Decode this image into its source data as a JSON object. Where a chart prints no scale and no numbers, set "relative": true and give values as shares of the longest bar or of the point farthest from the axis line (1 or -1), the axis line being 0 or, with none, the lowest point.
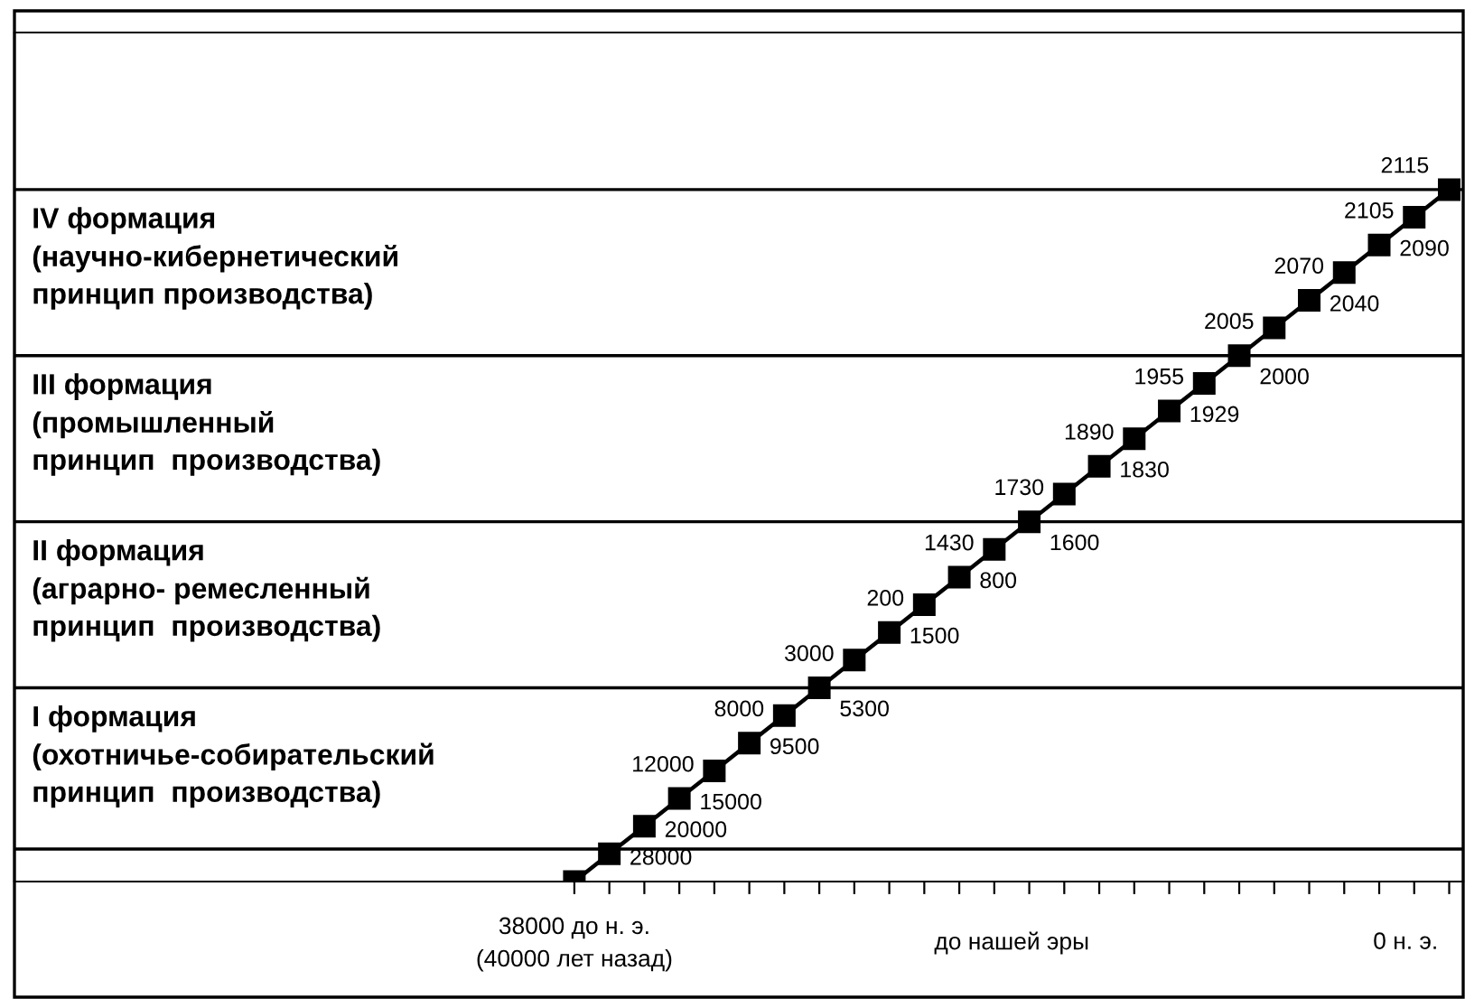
{
  "chart_data": {
    "type": "line",
    "relative": true,
    "marker": "square",
    "line_style": "solid",
    "categories": [
      null,
      null,
      null,
      null,
      null,
      null,
      null,
      null,
      null,
      null,
      null,
      null,
      null,
      null,
      null,
      null,
      null,
      null,
      null,
      null,
      null,
      null,
      null,
      null,
      null,
      null
    ],
    "series": [
      {
        "color": "#000000",
        "values": [
          0,
          0.04,
          0.08,
          0.12,
          0.16,
          0.2,
          0.24,
          0.28,
          0.32,
          0.36,
          0.4,
          0.44,
          0.48,
          0.52,
          0.56,
          0.6,
          0.64,
          0.68,
          0.72,
          0.76,
          0.8,
          0.84,
          0.88,
          0.92,
          0.96,
          1
        ]
      }
    ],
    "ref_lines": [
      {
        "axis": "y",
        "value": 0.047,
        "color": "#000000"
      },
      {
        "axis": "y",
        "value": 0.28,
        "label": "I формация\n(охотничье-собирательский\nпринцип  производства)",
        "color": "#000000"
      },
      {
        "axis": "y",
        "value": 0.52,
        "label": "II формация\n(аграрно- ремесленный\nпринцип  производства)",
        "color": "#000000"
      },
      {
        "axis": "y",
        "value": 0.76,
        "label": "III формация\n(промышленный\nпринцип  производства)",
        "color": "#000000"
      },
      {
        "axis": "y",
        "value": 1.0,
        "label": "IV формация\n(научно-кибернетический\nпринцип производства)",
        "color": "#000000"
      }
    ],
    "annotations": [
      "38000 до н. э.\n(40000 лет назад)",
      "до нашей эры",
      "0 н. э.",
      "28000",
      "20000",
      "15000",
      "12000",
      "9500",
      "8000",
      "5300",
      "3000",
      "1500",
      "200",
      "800",
      "1430",
      "1600",
      "1730",
      "1830",
      "1890",
      "1929",
      "1955",
      "2000",
      "2005",
      "2040",
      "2070",
      "2090",
      "2105",
      "2115"
    ]
  }
}
